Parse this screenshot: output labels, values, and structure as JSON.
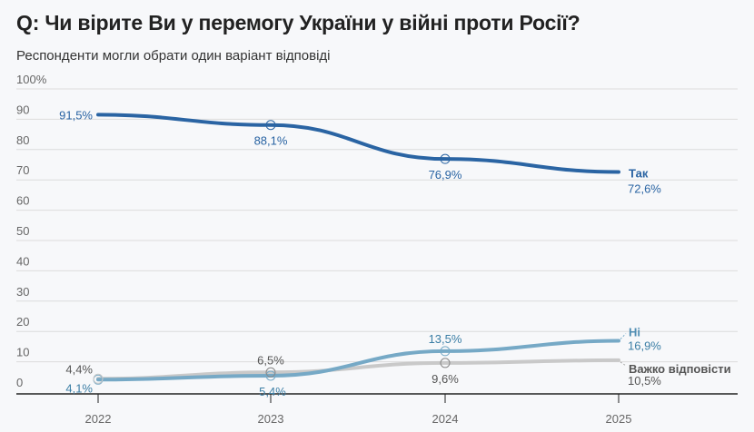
{
  "header": {
    "title": "Q: Чи вірите Ви у перемогу України у війні проти Росії?",
    "subtitle": "Респонденти могли обрати один варіант відповіді"
  },
  "chart_data": {
    "type": "line",
    "title": "Q: Чи вірите Ви у перемогу України у війні проти Росії?",
    "subtitle": "Респонденти могли обрати один варіант відповіді",
    "x": [
      "2022",
      "2023",
      "2024",
      "2025"
    ],
    "ylim": [
      0,
      100
    ],
    "yticks": [
      {
        "value": 0,
        "label": "0"
      },
      {
        "value": 10,
        "label": "10"
      },
      {
        "value": 20,
        "label": "20"
      },
      {
        "value": 30,
        "label": "30"
      },
      {
        "value": 40,
        "label": "40"
      },
      {
        "value": 50,
        "label": "50"
      },
      {
        "value": 60,
        "label": "60"
      },
      {
        "value": 70,
        "label": "70"
      },
      {
        "value": 80,
        "label": "80"
      },
      {
        "value": 90,
        "label": "90"
      },
      {
        "value": 100,
        "label": "100%"
      }
    ],
    "grid": true,
    "series": [
      {
        "name": "Так",
        "color": "#2a64a3",
        "values": [
          91.5,
          88.1,
          76.9,
          72.6
        ],
        "labels": [
          "91,5%",
          "88,1%",
          "76,9%",
          "72,6%"
        ]
      },
      {
        "name": "Ні",
        "color": "#76a9c6",
        "values": [
          4.1,
          5.4,
          13.5,
          16.9
        ],
        "labels": [
          "4,1%",
          "5,4%",
          "13,5%",
          "16,9%"
        ]
      },
      {
        "name": "Важко відповісти",
        "color": "#c9c9c9",
        "values": [
          4.4,
          6.5,
          9.6,
          10.5
        ],
        "labels": [
          "4,4%",
          "6,5%",
          "9,6%",
          "10,5%"
        ]
      }
    ]
  }
}
